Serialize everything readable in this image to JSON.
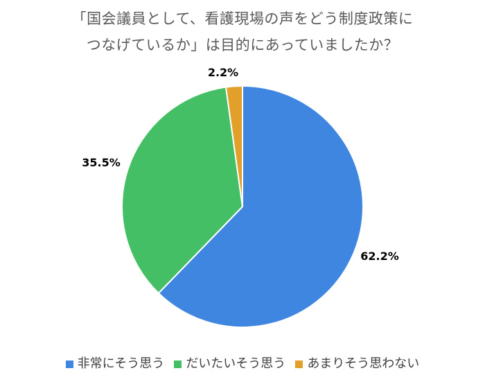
{
  "title_lines": [
    "「国会議員として、看護現場の声をどう制度政策に",
    "つなげているか」は目的にあっていましたか？"
  ],
  "chart_data": {
    "type": "pie",
    "title": "「国会議員として、看護現場の声をどう制度政策につなげているか」は目的にあっていましたか？",
    "legend_position": "bottom",
    "slices": [
      {
        "label": "非常にそう思う",
        "value": 62.2,
        "value_label": "62.2%",
        "color": "#3f86e0"
      },
      {
        "label": "だいたいそう思う",
        "value": 35.5,
        "value_label": "35.5%",
        "color": "#45bf66"
      },
      {
        "label": "あまりそう思わない",
        "value": 2.2,
        "value_label": "2.2%",
        "color": "#e2a02a"
      }
    ]
  }
}
